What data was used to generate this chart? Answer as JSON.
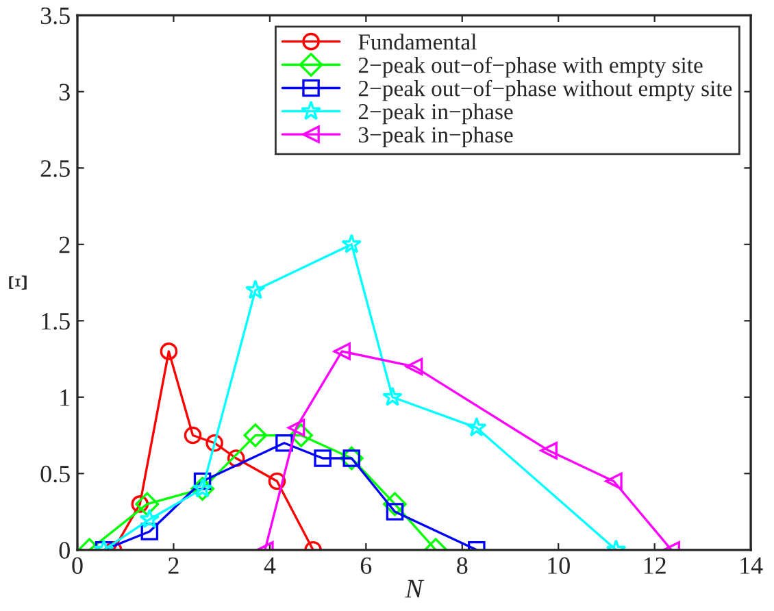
{
  "chart_data": {
    "type": "line",
    "xlabel": "N",
    "ylabel": "Ξ",
    "xlim": [
      0,
      14
    ],
    "xticks": [
      0,
      2,
      4,
      6,
      8,
      10,
      12,
      14
    ],
    "ylim": [
      0,
      3.5
    ],
    "yticks": [
      0,
      0.5,
      1,
      1.5,
      2,
      2.5,
      3,
      3.5
    ],
    "grid": false,
    "legend": "top right",
    "line_style": "solid",
    "series": [
      {
        "name": "Fundamental",
        "color": "#ff0000",
        "marker": "circle",
        "x": [
          0.75,
          1.3,
          1.9,
          2.4,
          2.85,
          3.3,
          4.15,
          4.9
        ],
        "values": [
          0,
          0.3,
          1.3,
          0.75,
          0.7,
          0.6,
          0.45,
          0
        ]
      },
      {
        "name": "2−peak out−of−phase with empty site",
        "color": "#00ff00",
        "marker": "diamond",
        "x": [
          0.25,
          1.45,
          2.6,
          3.7,
          4.65,
          5.7,
          6.6,
          7.45
        ],
        "values": [
          0,
          0.3,
          0.4,
          0.75,
          0.75,
          0.6,
          0.3,
          0
        ]
      },
      {
        "name": "2−peak out−of−phase without empty site",
        "color": "#0000ff",
        "marker": "square",
        "x": [
          0.55,
          1.5,
          2.6,
          4.3,
          5.1,
          5.7,
          6.6,
          8.3
        ],
        "values": [
          0,
          0.12,
          0.45,
          0.7,
          0.6,
          0.6,
          0.25,
          0
        ]
      },
      {
        "name": "2−peak in−phase",
        "color": "#00ffff",
        "marker": "star",
        "x": [
          0.55,
          1.5,
          2.6,
          3.7,
          5.7,
          6.55,
          8.3,
          11.2
        ],
        "values": [
          0,
          0.2,
          0.4,
          1.7,
          2.0,
          1.0,
          0.8,
          0
        ]
      },
      {
        "name": "3−peak in−phase",
        "color": "#ff00ff",
        "marker": "triangle",
        "x": [
          3.9,
          4.55,
          5.5,
          7.0,
          9.8,
          11.15,
          12.35
        ],
        "values": [
          0,
          0.8,
          1.3,
          1.2,
          0.65,
          0.45,
          0
        ]
      }
    ]
  }
}
